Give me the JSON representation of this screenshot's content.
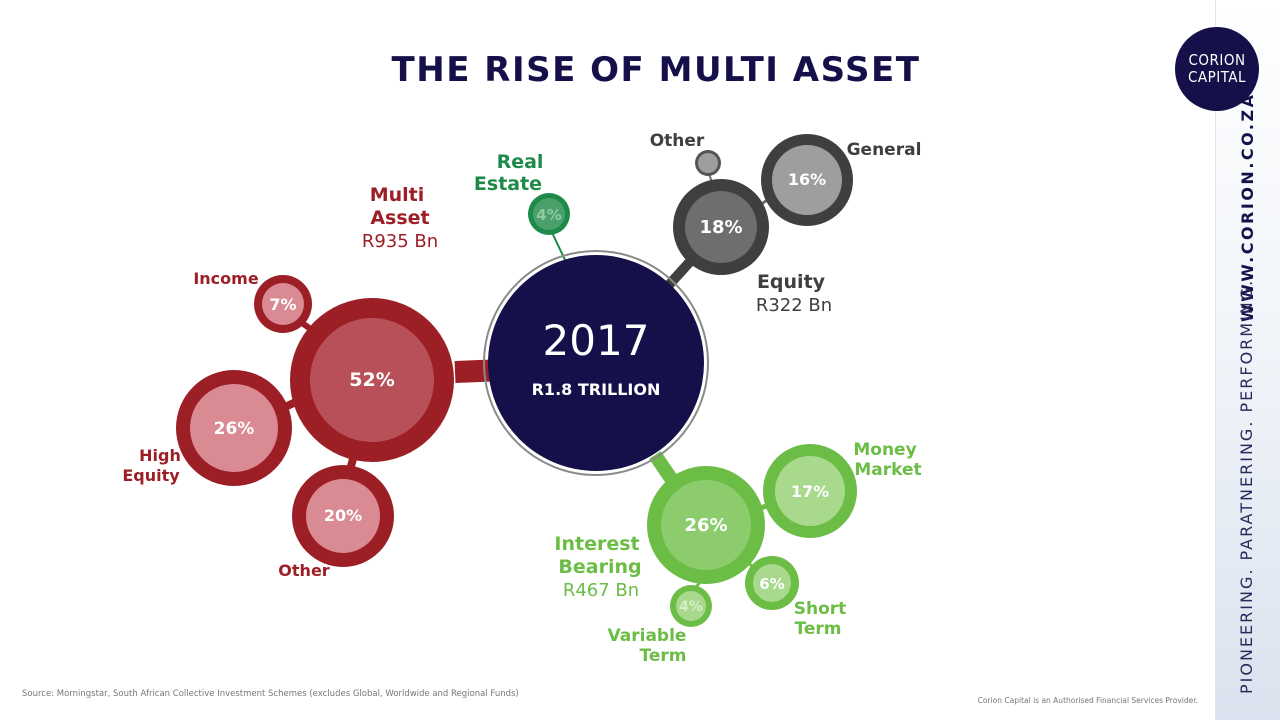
{
  "title": "THE RISE OF MULTI ASSET",
  "logo": {
    "line1": "CORION",
    "line2": "CAPITAL"
  },
  "sidebar": {
    "url": "WWW.CORION.CO.ZA",
    "tagline": "PIONEERING. PARATNERING. PERFORMING."
  },
  "center": {
    "year": "2017",
    "total": "R1.8  TRILLION"
  },
  "groups": {
    "multi_asset": {
      "name_line1": "Multi",
      "name_line2": "Asset",
      "amount": "R935 Bn",
      "pct": "52%",
      "children": {
        "income": {
          "label": "Income",
          "pct": "7%"
        },
        "high_equity": {
          "label_line1": "High",
          "label_line2": "Equity",
          "pct": "26%"
        },
        "other": {
          "label": "Other",
          "pct": "20%"
        }
      }
    },
    "real_estate": {
      "name_line1": "Real",
      "name_line2": "Estate",
      "pct": "4%"
    },
    "equity": {
      "name": "Equity",
      "amount": "R322 Bn",
      "pct": "18%",
      "children": {
        "other": {
          "label": "Other"
        },
        "general": {
          "label": "General",
          "pct": "16%"
        }
      }
    },
    "interest_bearing": {
      "name_line1": "Interest",
      "name_line2": "Bearing",
      "amount": "R467 Bn",
      "pct": "26%",
      "children": {
        "money_market": {
          "label_line1": "Money",
          "label_line2": "Market",
          "pct": "17%"
        },
        "short_term": {
          "label_line1": "Short",
          "label_line2": "Term",
          "pct": "6%"
        },
        "variable_term": {
          "label_line1": "Variable",
          "label_line2": "Term",
          "pct": "4%"
        }
      }
    }
  },
  "colors": {
    "navy": "#15104a",
    "red_dark": "#9d1f26",
    "red_mid": "#b8505a",
    "red_light": "#d98a92",
    "green_dark": "#1e8a4a",
    "green_bright": "#6cbd45",
    "green_light": "#a8d98c",
    "grey_dark": "#3f3f3f",
    "grey_mid": "#6e6e6e",
    "grey_light": "#9e9e9e"
  },
  "footer": {
    "source": "Source: Morningstar, South African Collective Investment Schemes (excludes Global, Worldwide and Regional Funds)",
    "disclaimer": "Corion Capital is an Authorised Financial Services Provider."
  }
}
